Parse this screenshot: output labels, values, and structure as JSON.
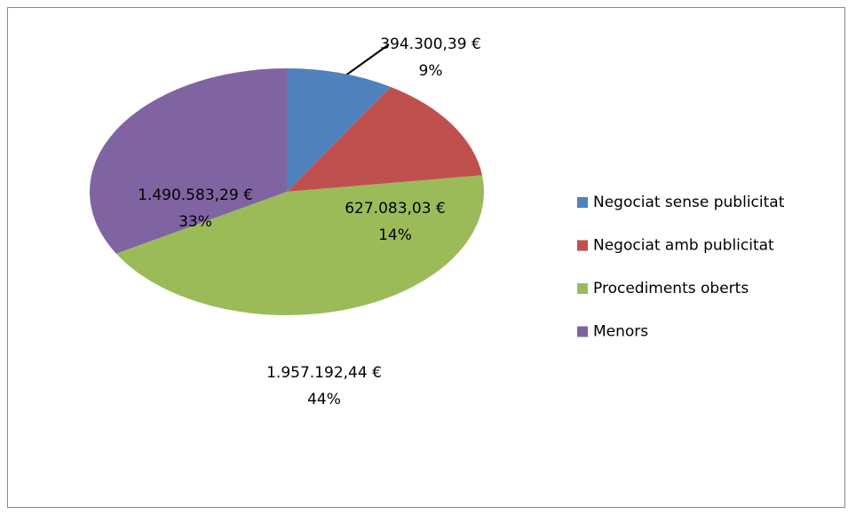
{
  "chart_data": {
    "type": "pie",
    "categories": [
      "Negociat sense publicitat",
      "Negociat amb publicitat",
      "Procediments oberts",
      "Menors"
    ],
    "values": [
      394300.39,
      627083.03,
      1957192.44,
      1490583.29
    ],
    "value_labels": [
      "394.300,39 €",
      "627.083,03 €",
      "1.957.192,44 €",
      "1.490.583,29 €"
    ],
    "percent_labels": [
      "9%",
      "14%",
      "44%",
      "33%"
    ],
    "colors": [
      "#4f81bd",
      "#c0504d",
      "#9bbb59",
      "#8064a2"
    ],
    "legend": "right"
  }
}
